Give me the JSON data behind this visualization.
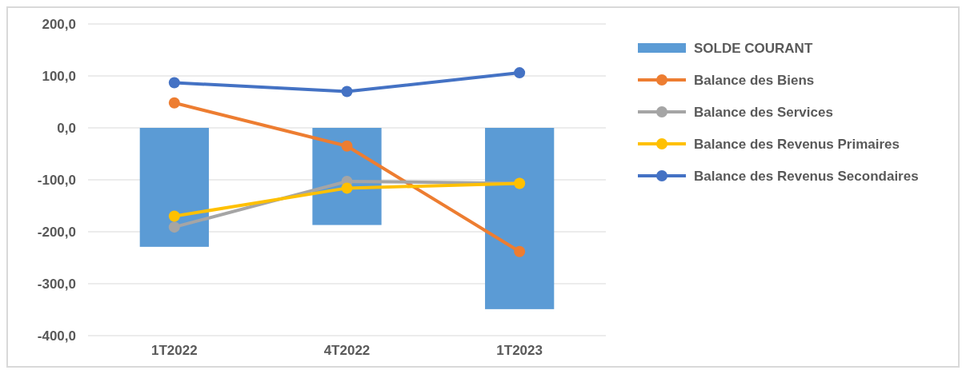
{
  "chart_data": {
    "type": "bar",
    "categories": [
      "1T2022",
      "4T2022",
      "1T2023"
    ],
    "series": [
      {
        "name": "SOLDE COURANT",
        "color": "#5b9bd5",
        "values": [
          -229,
          -187,
          -349
        ]
      },
      {
        "name": "Balance des Biens",
        "type": "line",
        "color": "#ed7d31",
        "values": [
          48,
          -35,
          -238
        ]
      },
      {
        "name": "Balance des Services",
        "type": "line",
        "color": "#a5a5a5",
        "values": [
          -191,
          -103,
          -107
        ]
      },
      {
        "name": "Balance des Revenus Primaires",
        "type": "line",
        "color": "#ffc000",
        "values": [
          -170,
          -116,
          -107
        ]
      },
      {
        "name": "Balance des Revenus Secondaires",
        "type": "line",
        "color": "#4472c4",
        "values": [
          87,
          70,
          106
        ]
      }
    ],
    "ylim": [
      -400,
      200
    ],
    "yticks": [
      {
        "value": 200,
        "label": "200,0"
      },
      {
        "value": 100,
        "label": "100,0"
      },
      {
        "value": 0,
        "label": "0,0"
      },
      {
        "value": -100,
        "label": "-100,0"
      },
      {
        "value": -200,
        "label": "-200,0"
      },
      {
        "value": -300,
        "label": "-300,0"
      },
      {
        "value": -400,
        "label": "-400,0"
      }
    ],
    "grid": "y",
    "legend": "right",
    "marker": "circle"
  }
}
